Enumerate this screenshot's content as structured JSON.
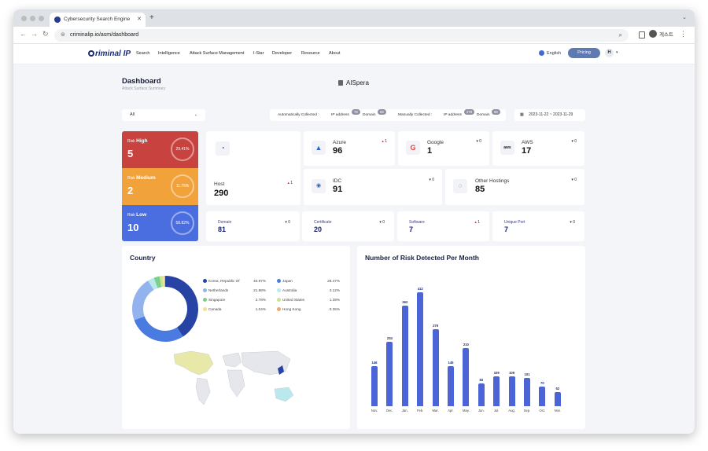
{
  "browser": {
    "tab_title": "Cybersecurity Search Engine",
    "url": "criminalip.io/asm/dashboard",
    "profile_label": "게스트"
  },
  "nav": {
    "logo": "riminal IP",
    "items": [
      "Search",
      "Intelligence",
      "Attack Surface Management",
      "I-Star",
      "Developer",
      "Resource",
      "About"
    ],
    "language": "English",
    "pricing": "Pricing",
    "user_initial": "H"
  },
  "header": {
    "title": "Dashboard",
    "subtitle": "Attack Surface Summary",
    "organization": "AISpera"
  },
  "filters": {
    "scope": "All",
    "auto_label": "Automatically Collected :",
    "manual_label": "Manually Collected :",
    "ip_label": "IP address",
    "domain_label": "Domain",
    "auto_ip": "78",
    "auto_domain": "59",
    "manual_ip": "278",
    "manual_domain": "88",
    "date_from": "2023-11-22",
    "date_sep": "~",
    "date_to": "2023-11-29"
  },
  "risk": [
    {
      "prefix": "Risk",
      "level": "High",
      "count": "5",
      "percent": "29.41%",
      "color": "#c8423f"
    },
    {
      "prefix": "Risk",
      "level": "Medium",
      "count": "2",
      "percent": "11.76%",
      "color": "#f2a23b"
    },
    {
      "prefix": "Risk",
      "level": "Low",
      "count": "10",
      "percent": "58.82%",
      "color": "#4a6ee0"
    }
  ],
  "cards": {
    "host": {
      "title": "Host",
      "count": "290",
      "delta": "1",
      "dir": "up"
    },
    "azure": {
      "title": "Azure",
      "count": "96",
      "delta": "1",
      "dir": "up"
    },
    "google": {
      "title": "Google",
      "count": "1",
      "delta": "0",
      "dir": "flat"
    },
    "aws": {
      "title": "AWS",
      "count": "17",
      "delta": "0",
      "dir": "flat"
    },
    "idc": {
      "title": "IDC",
      "count": "91",
      "delta": "0",
      "dir": "flat"
    },
    "other": {
      "title": "Other Hostings",
      "count": "85",
      "delta": "0",
      "dir": "flat"
    },
    "domain": {
      "title": "Domain",
      "count": "81",
      "delta": "0",
      "dir": "flat"
    },
    "certificate": {
      "title": "Certificate",
      "count": "20",
      "delta": "0",
      "dir": "flat"
    },
    "software": {
      "title": "Software",
      "count": "7",
      "delta": "1",
      "dir": "up"
    },
    "port": {
      "title": "Unique Port",
      "count": "7",
      "delta": "0",
      "dir": "flat"
    }
  },
  "country": {
    "title": "Country",
    "items": [
      {
        "name": "Korea, Republic Of",
        "pct": "40.97%",
        "value": 40.97,
        "color": "#2743a3"
      },
      {
        "name": "Japan",
        "pct": "28.47%",
        "value": 28.47,
        "color": "#4a7be0"
      },
      {
        "name": "Netherlands",
        "pct": "21.88%",
        "value": 21.88,
        "color": "#93b3ee"
      },
      {
        "name": "Australia",
        "pct": "3.12%",
        "value": 3.12,
        "color": "#b9e8ef"
      },
      {
        "name": "Singapore",
        "pct": "2.78%",
        "value": 2.78,
        "color": "#7ccf8a"
      },
      {
        "name": "United States",
        "pct": "1.39%",
        "value": 1.39,
        "color": "#c9e58f"
      },
      {
        "name": "Canada",
        "pct": "1.04%",
        "value": 1.04,
        "color": "#f4e08e"
      },
      {
        "name": "Hong Kong",
        "pct": "0.35%",
        "value": 0.35,
        "color": "#f2a66a"
      }
    ]
  },
  "chart_data": {
    "type": "bar",
    "title": "Number of Risk Detected Per Month",
    "categories": [
      "Nov.",
      "Dec.",
      "Jan.",
      "Feb.",
      "Mar.",
      "Apr.",
      "May.",
      "Jun.",
      "Jul.",
      "Aug.",
      "Sep.",
      "Oct.",
      "Nov."
    ],
    "values": [
      146,
      234,
      362,
      412,
      279,
      145,
      210,
      83,
      109,
      109,
      101,
      70,
      52
    ],
    "ylim": [
      0,
      420
    ],
    "grid": false,
    "bar_color": "#4b64d6"
  }
}
